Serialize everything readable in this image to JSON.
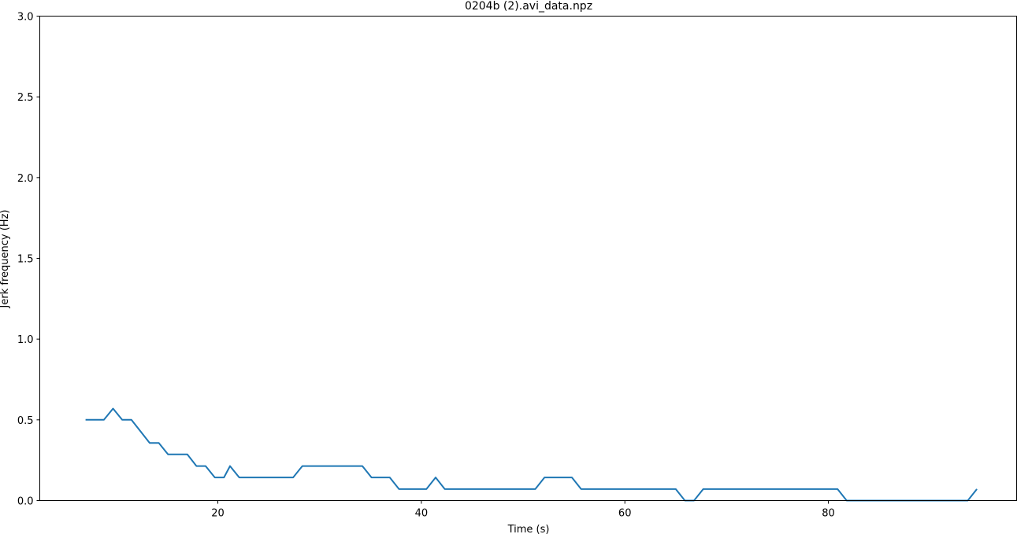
{
  "chart_data": {
    "type": "line",
    "title": "0204b (2).avi_data.npz",
    "xlabel": "Time (s)",
    "ylabel": "Jerk frequency (Hz)",
    "xlim": [
      2.5,
      98.5
    ],
    "ylim": [
      0,
      3.0
    ],
    "x_ticks": [
      20,
      40,
      60,
      80
    ],
    "y_ticks": [
      0.0,
      0.5,
      1.0,
      1.5,
      2.0,
      2.5,
      3.0
    ],
    "grid": false,
    "series": [
      {
        "color": "#1f77b4",
        "x": [
          7.0,
          8.8,
          9.7,
          10.6,
          11.5,
          13.3,
          14.2,
          15.1,
          17.0,
          17.9,
          18.8,
          19.7,
          20.6,
          21.2,
          22.1,
          27.4,
          28.3,
          34.2,
          35.1,
          36.9,
          37.8,
          40.5,
          41.4,
          42.3,
          51.2,
          52.1,
          54.8,
          55.7,
          65.0,
          65.9,
          66.8,
          67.7,
          80.9,
          81.8,
          93.7,
          94.6
        ],
        "y": [
          0.5,
          0.5,
          0.57,
          0.5,
          0.5,
          0.357,
          0.357,
          0.286,
          0.286,
          0.214,
          0.214,
          0.143,
          0.143,
          0.214,
          0.143,
          0.143,
          0.214,
          0.214,
          0.143,
          0.143,
          0.071,
          0.071,
          0.143,
          0.071,
          0.071,
          0.143,
          0.143,
          0.071,
          0.071,
          0.0,
          0.0,
          0.071,
          0.071,
          0.0,
          0.0,
          0.071
        ]
      }
    ]
  }
}
